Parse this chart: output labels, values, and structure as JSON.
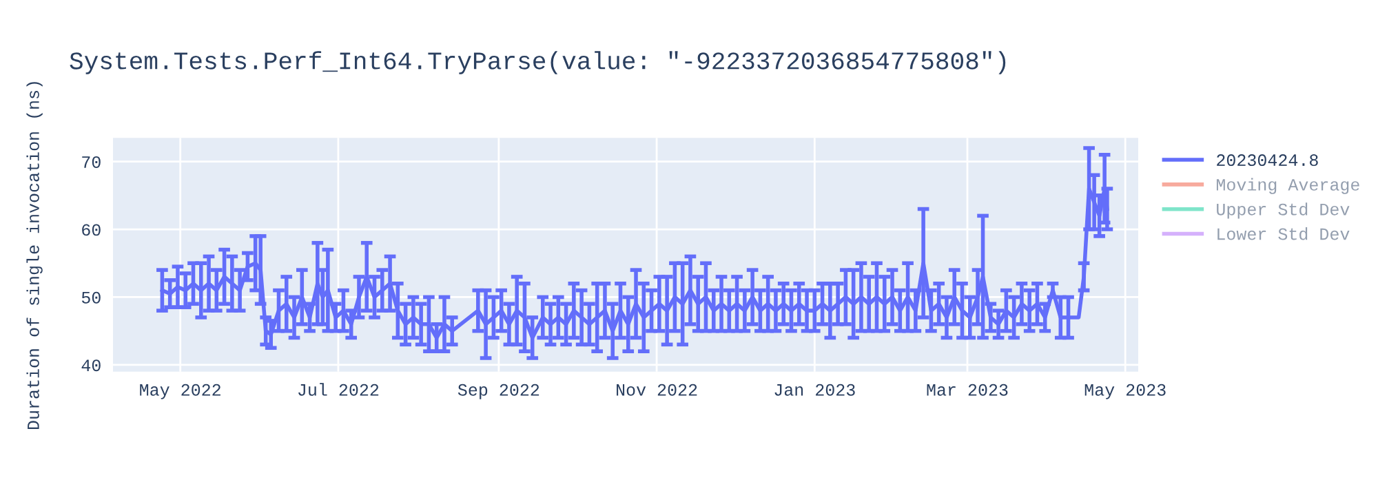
{
  "chart_data": {
    "type": "line",
    "title": "System.Tests.Perf_Int64.TryParse(value: \"-9223372036854775808\")",
    "ylabel": "Duration of single invocation (ns)",
    "x": [
      "2022-04-24",
      "2022-04-27",
      "2022-04-30",
      "2022-05-03",
      "2022-05-06",
      "2022-05-09",
      "2022-05-12",
      "2022-05-15",
      "2022-05-18",
      "2022-05-21",
      "2022-05-24",
      "2022-05-27",
      "2022-05-30",
      "2022-06-01",
      "2022-06-03",
      "2022-06-05",
      "2022-06-08",
      "2022-06-11",
      "2022-06-14",
      "2022-06-17",
      "2022-06-20",
      "2022-06-23",
      "2022-06-25",
      "2022-06-27",
      "2022-06-30",
      "2022-07-03",
      "2022-07-06",
      "2022-07-09",
      "2022-07-12",
      "2022-07-15",
      "2022-07-18",
      "2022-07-21",
      "2022-07-24",
      "2022-07-27",
      "2022-07-30",
      "2022-08-02",
      "2022-08-05",
      "2022-08-08",
      "2022-08-11",
      "2022-08-14",
      "2022-08-24",
      "2022-08-27",
      "2022-08-30",
      "2022-09-02",
      "2022-09-05",
      "2022-09-08",
      "2022-09-11",
      "2022-09-14",
      "2022-09-18",
      "2022-09-21",
      "2022-09-24",
      "2022-09-27",
      "2022-09-30",
      "2022-10-03",
      "2022-10-06",
      "2022-10-09",
      "2022-10-12",
      "2022-10-15",
      "2022-10-18",
      "2022-10-21",
      "2022-10-24",
      "2022-10-27",
      "2022-10-30",
      "2022-11-02",
      "2022-11-05",
      "2022-11-08",
      "2022-11-11",
      "2022-11-14",
      "2022-11-17",
      "2022-11-20",
      "2022-11-23",
      "2022-11-26",
      "2022-11-29",
      "2022-12-02",
      "2022-12-05",
      "2022-12-08",
      "2022-12-11",
      "2022-12-14",
      "2022-12-17",
      "2022-12-20",
      "2022-12-23",
      "2022-12-26",
      "2022-12-29",
      "2023-01-01",
      "2023-01-04",
      "2023-01-07",
      "2023-01-10",
      "2023-01-13",
      "2023-01-16",
      "2023-01-19",
      "2023-01-22",
      "2023-01-25",
      "2023-01-28",
      "2023-01-31",
      "2023-02-03",
      "2023-02-06",
      "2023-02-09",
      "2023-02-12",
      "2023-02-15",
      "2023-02-18",
      "2023-02-21",
      "2023-02-24",
      "2023-02-27",
      "2023-03-02",
      "2023-03-05",
      "2023-03-07",
      "2023-03-10",
      "2023-03-13",
      "2023-03-16",
      "2023-03-19",
      "2023-03-22",
      "2023-03-25",
      "2023-03-28",
      "2023-03-31",
      "2023-04-03",
      "2023-04-06",
      "2023-04-09",
      "2023-04-13",
      "2023-04-15",
      "2023-04-17",
      "2023-04-19",
      "2023-04-21",
      "2023-04-23",
      "2023-04-24"
    ],
    "series": [
      {
        "name": "20230424.8",
        "color": "#636efa",
        "values": [
          51,
          50.5,
          51.5,
          51,
          52,
          51,
          52,
          51,
          53,
          52,
          51,
          54.5,
          55,
          54,
          45,
          44.5,
          48,
          49,
          47,
          50,
          47,
          52,
          50,
          51,
          47,
          48,
          46,
          50,
          53,
          50,
          51,
          52,
          48,
          46,
          47,
          46,
          46,
          44,
          46,
          45,
          48,
          46,
          47,
          48,
          46,
          48,
          47,
          44,
          47,
          46,
          47,
          46,
          48,
          47,
          46,
          47,
          48,
          45,
          48,
          46,
          49,
          47,
          48,
          49,
          48,
          50,
          49,
          51,
          49,
          50,
          48,
          49,
          48,
          49,
          48,
          50,
          48,
          49,
          48,
          49,
          48,
          49,
          48,
          48,
          49,
          48,
          49,
          50,
          49,
          50,
          49,
          50,
          49,
          50,
          48,
          50,
          48,
          55,
          48,
          49,
          47,
          50,
          48,
          47,
          50,
          53,
          47,
          46,
          48,
          47,
          49,
          48,
          49,
          47,
          51,
          47,
          47,
          47,
          53,
          66,
          64,
          62,
          66,
          63
        ],
        "errors": [
          3,
          2,
          3,
          2.5,
          3,
          4,
          4,
          3,
          4,
          4,
          3,
          2,
          4,
          5,
          2,
          2,
          3,
          4,
          3,
          4,
          2,
          6,
          4,
          6,
          2,
          3,
          2,
          3,
          5,
          3,
          3,
          4,
          4,
          3,
          3,
          3,
          4,
          2,
          4,
          2,
          3,
          5,
          3,
          3,
          3,
          5,
          5,
          3,
          3,
          3,
          3,
          3,
          4,
          4,
          3,
          5,
          4,
          4,
          4,
          4,
          5,
          5,
          3,
          4,
          5,
          5,
          6,
          5,
          4,
          5,
          3,
          4,
          3,
          4,
          3,
          4,
          3,
          4,
          3,
          3,
          3,
          3,
          3,
          3,
          3,
          4,
          3,
          4,
          5,
          5,
          4,
          5,
          4,
          4,
          3,
          5,
          3,
          8,
          3,
          3,
          3,
          4,
          4,
          3,
          4,
          9,
          2,
          2,
          3,
          3,
          3,
          3,
          3,
          2,
          1,
          3,
          3,
          null,
          2,
          6,
          4,
          3,
          5,
          3
        ]
      },
      {
        "name": "Moving Average",
        "color": "#ef553b",
        "values": [
          null,
          null,
          null,
          null,
          null,
          null,
          null,
          null,
          null,
          null,
          null,
          null,
          null,
          null,
          null,
          null,
          null,
          null,
          null,
          null,
          null,
          null,
          null,
          null,
          null,
          null,
          null,
          null,
          null,
          null,
          null,
          null,
          null,
          null,
          null,
          null,
          null,
          null,
          null,
          null,
          null,
          null,
          null,
          null,
          null,
          null,
          null,
          null,
          null,
          null,
          null,
          null,
          null,
          null,
          null,
          null,
          null,
          null,
          null,
          null,
          null,
          null,
          null,
          null,
          null,
          null,
          null,
          null,
          null,
          null,
          null,
          null,
          null,
          null,
          null,
          null,
          null,
          null,
          null,
          null,
          null,
          null,
          null,
          null,
          null,
          null,
          null,
          null,
          null,
          null,
          null,
          null,
          null,
          null,
          null,
          null,
          null,
          null,
          null,
          null,
          null,
          null,
          null,
          null,
          null,
          null,
          null,
          null,
          null,
          null,
          null,
          null,
          null,
          null,
          null,
          null,
          null,
          null,
          null,
          null,
          null,
          null,
          null,
          null
        ]
      },
      {
        "name": "Upper Std Dev",
        "color": "#00cc96",
        "values": [
          null,
          null,
          null,
          null,
          null,
          null,
          null,
          null,
          null,
          null,
          null,
          null,
          null,
          null,
          null,
          null,
          null,
          null,
          null,
          null,
          null,
          null,
          null,
          null,
          null,
          null,
          null,
          null,
          null,
          null,
          null,
          null,
          null,
          null,
          null,
          null,
          null,
          null,
          null,
          null,
          null,
          null,
          null,
          null,
          null,
          null,
          null,
          null,
          null,
          null,
          null,
          null,
          null,
          null,
          null,
          null,
          null,
          null,
          null,
          null,
          null,
          null,
          null,
          null,
          null,
          null,
          null,
          null,
          null,
          null,
          null,
          null,
          null,
          null,
          null,
          null,
          null,
          null,
          null,
          null,
          null,
          null,
          null,
          null,
          null,
          null,
          null,
          null,
          null,
          null,
          null,
          null,
          null,
          null,
          null,
          null,
          null,
          null,
          null,
          null,
          null,
          null,
          null,
          null,
          null,
          null,
          null,
          null,
          null,
          null,
          null,
          null,
          null,
          null,
          null,
          null,
          null,
          null,
          null,
          null,
          null,
          null,
          null,
          null
        ]
      },
      {
        "name": "Lower Std Dev",
        "color": "#ab63fa",
        "values": [
          null,
          null,
          null,
          null,
          null,
          null,
          null,
          null,
          null,
          null,
          null,
          null,
          null,
          null,
          null,
          null,
          null,
          null,
          null,
          null,
          null,
          null,
          null,
          null,
          null,
          null,
          null,
          null,
          null,
          null,
          null,
          null,
          null,
          null,
          null,
          null,
          null,
          null,
          null,
          null,
          null,
          null,
          null,
          null,
          null,
          null,
          null,
          null,
          null,
          null,
          null,
          null,
          null,
          null,
          null,
          null,
          null,
          null,
          null,
          null,
          null,
          null,
          null,
          null,
          null,
          null,
          null,
          null,
          null,
          null,
          null,
          null,
          null,
          null,
          null,
          null,
          null,
          null,
          null,
          null,
          null,
          null,
          null,
          null,
          null,
          null,
          null,
          null,
          null,
          null,
          null,
          null,
          null,
          null,
          null,
          null,
          null,
          null,
          null,
          null,
          null,
          null,
          null,
          null,
          null,
          null,
          null,
          null,
          null,
          null,
          null,
          null,
          null,
          null,
          null,
          null,
          null,
          null,
          null,
          null,
          null,
          null,
          null,
          null
        ]
      }
    ],
    "xlim": [
      "2022-04-05",
      "2023-05-06"
    ],
    "xticks": [
      {
        "value": "2022-05-01",
        "label": "May 2022"
      },
      {
        "value": "2022-07-01",
        "label": "Jul 2022"
      },
      {
        "value": "2022-09-01",
        "label": "Sep 2022"
      },
      {
        "value": "2022-11-01",
        "label": "Nov 2022"
      },
      {
        "value": "2023-01-01",
        "label": "Jan 2023"
      },
      {
        "value": "2023-03-01",
        "label": "Mar 2023"
      },
      {
        "value": "2023-05-01",
        "label": "May 2023"
      }
    ],
    "ylim": [
      39,
      73.5
    ],
    "yticks": [
      40,
      50,
      60,
      70
    ],
    "grid": true,
    "legend": "right",
    "marker": "none",
    "line_style": "solid"
  }
}
